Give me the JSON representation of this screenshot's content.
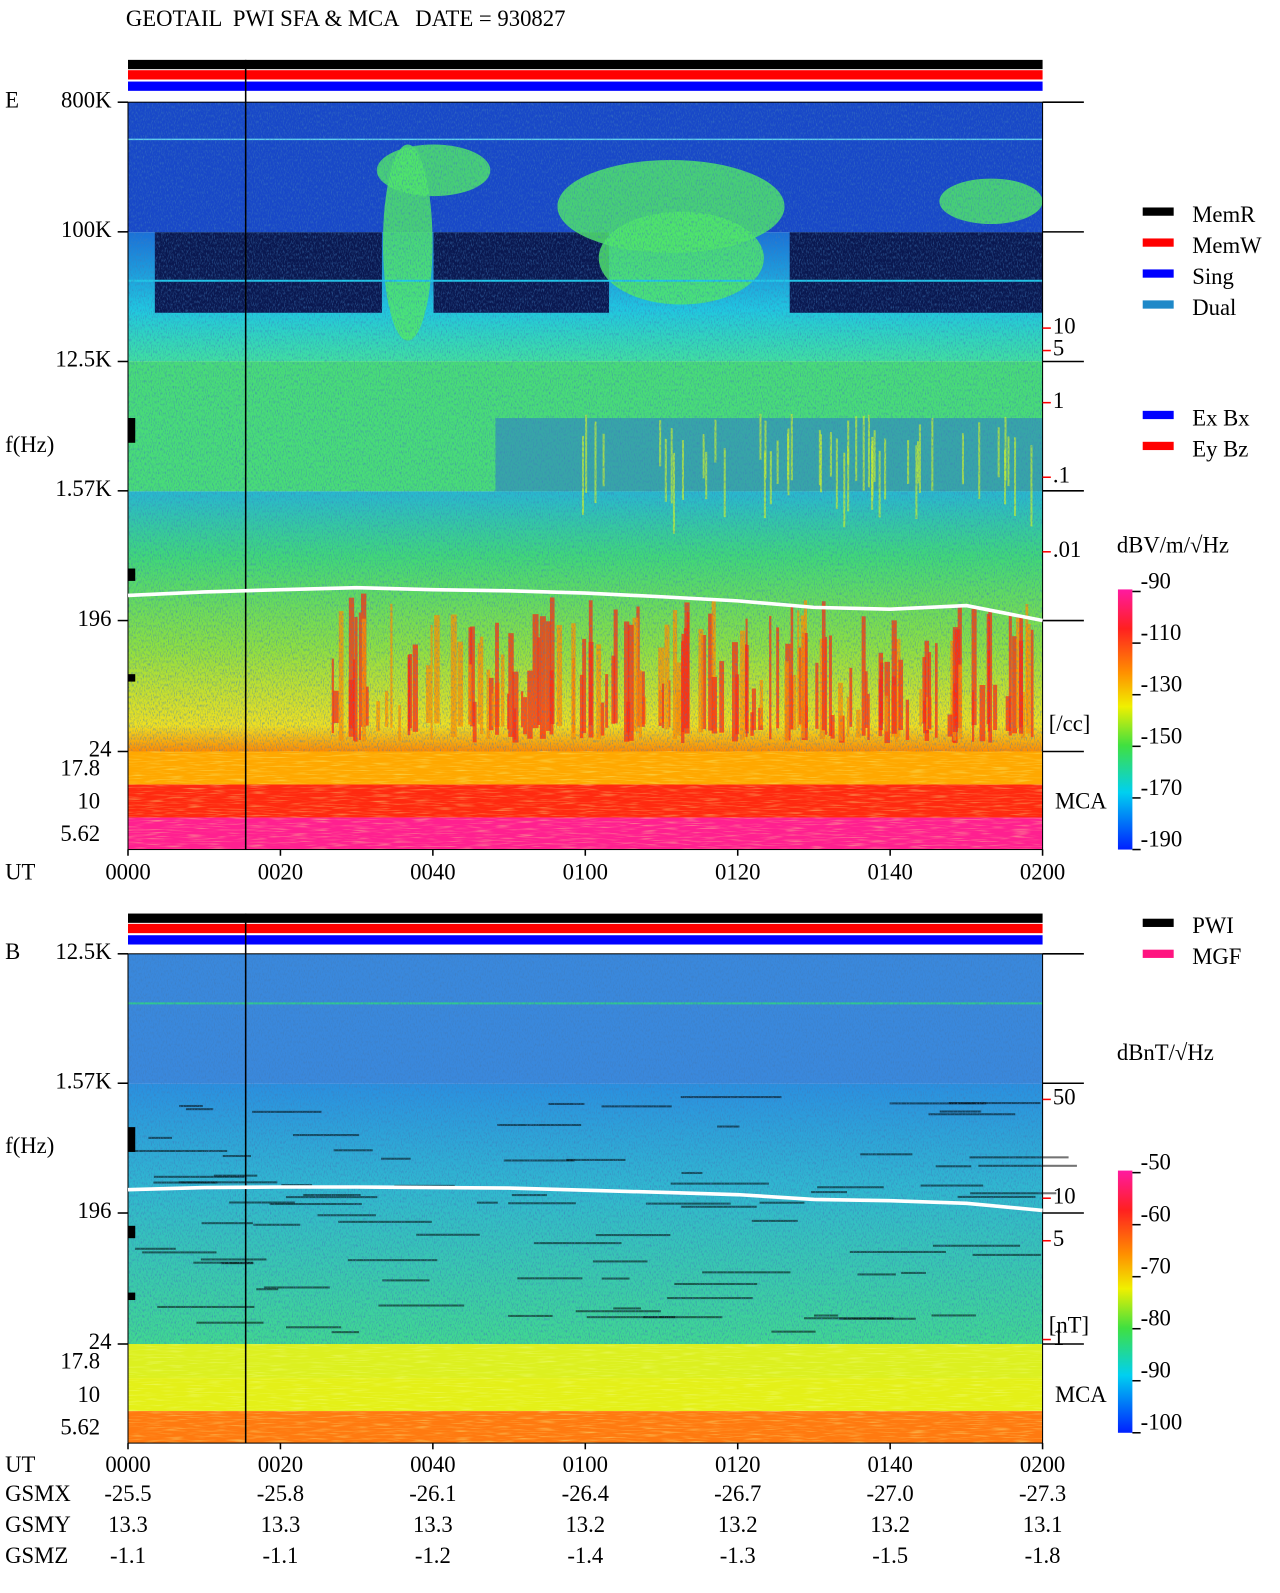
{
  "header": {
    "title": "GEOTAIL  PWI SFA & MCA   DATE = 930827"
  },
  "chart_data": [
    {
      "type": "spectrogram",
      "panel_label": "E",
      "y_label": "f(Hz)",
      "x_label": "UT",
      "xlim": [
        0,
        120
      ],
      "xticks": [
        {
          "value": 0,
          "label": "0000"
        },
        {
          "value": 20,
          "label": "0020"
        },
        {
          "value": 40,
          "label": "0040"
        },
        {
          "value": 60,
          "label": "0100"
        },
        {
          "value": 80,
          "label": "0120"
        },
        {
          "value": 100,
          "label": "0140"
        },
        {
          "value": 120,
          "label": "0200"
        }
      ],
      "yscale": "log",
      "ylim": [
        24,
        800000
      ],
      "yticks": [
        {
          "value": 800000,
          "label": "800K"
        },
        {
          "value": 100000,
          "label": "100K"
        },
        {
          "value": 12500,
          "label": "12.5K"
        },
        {
          "value": 1570,
          "label": "1.57K"
        },
        196,
        24
      ],
      "mca_label": "MCA",
      "mca_channels": [
        17.8,
        10,
        5.62
      ],
      "y2scale": "log",
      "y2lim": [
        2.1e-05,
        10700
      ],
      "y2ticks": [
        10,
        5,
        1,
        {
          "value": 0.1,
          "label": ".1"
        },
        {
          "value": 0.01,
          "label": ".01"
        }
      ],
      "y2_label": "[/cc]",
      "x": [
        0,
        10,
        20,
        30,
        40,
        50,
        60,
        70,
        80,
        90,
        100,
        110,
        120
      ],
      "series": [
        {
          "color": "#ffffff",
          "axis": "y2",
          "values": [
            0.0026,
            0.0029,
            0.0031,
            0.0033,
            0.0031,
            0.003,
            0.0028,
            0.0025,
            0.0022,
            0.0018,
            0.0017,
            0.0019,
            0.0012
          ]
        }
      ],
      "status_legend": [
        {
          "name": "MemR",
          "color": "#000000"
        },
        {
          "name": "MemW",
          "color": "#ff0000"
        },
        {
          "name": "Sing",
          "color": "#0000ff"
        },
        {
          "name": "Dual",
          "color": "#1e88c8"
        }
      ],
      "mode_legend": [
        {
          "name": "Ex Bx",
          "color": "#0000ff"
        },
        {
          "name": "Ey Bz",
          "color": "#ff0000"
        }
      ],
      "colorbar": {
        "label": "dBV/m/√Hz",
        "lim": [
          -190,
          -90
        ],
        "ticks": [
          -90,
          -110,
          -130,
          -150,
          -170,
          -190
        ]
      }
    },
    {
      "type": "spectrogram",
      "panel_label": "B",
      "y_label": "f(Hz)",
      "x_label": "UT",
      "xlim": [
        0,
        120
      ],
      "xticks": [
        {
          "value": 0,
          "label": "0000"
        },
        {
          "value": 20,
          "label": "0020"
        },
        {
          "value": 40,
          "label": "0040"
        },
        {
          "value": 60,
          "label": "0100"
        },
        {
          "value": 80,
          "label": "0120"
        },
        {
          "value": 100,
          "label": "0140"
        },
        {
          "value": 120,
          "label": "0200"
        }
      ],
      "yscale": "log",
      "ylim": [
        24,
        12500
      ],
      "yticks": [
        {
          "value": 12500,
          "label": "12.5K"
        },
        {
          "value": 1570,
          "label": "1.57K"
        },
        196,
        24
      ],
      "mca_label": "MCA",
      "mca_channels": [
        17.8,
        10,
        5.62
      ],
      "y2scale": "log",
      "y2lim": [
        0.93,
        536
      ],
      "y2ticks": [
        50,
        10,
        5,
        1
      ],
      "y2_label": "[nT]",
      "x": [
        0,
        10,
        20,
        30,
        40,
        50,
        60,
        70,
        80,
        90,
        100,
        110,
        120
      ],
      "series": [
        {
          "color": "#ffffff",
          "axis": "y2",
          "values": [
            11.5,
            11.9,
            12.0,
            12.0,
            11.9,
            11.8,
            11.4,
            11.0,
            10.6,
            9.8,
            9.6,
            9.2,
            8.2
          ]
        }
      ],
      "status_legend": [
        {
          "name": "PWI",
          "color": "#000000"
        },
        {
          "name": "MGF",
          "color": "#ff1480"
        }
      ],
      "colorbar": {
        "label": "dBnT/√Hz",
        "lim": [
          -100,
          -50
        ],
        "ticks": [
          -50,
          -60,
          -70,
          -80,
          -90,
          -100
        ]
      }
    }
  ],
  "orbit": {
    "rows": [
      {
        "label": "GSMX",
        "values": [
          "-25.5",
          "-25.8",
          "-26.1",
          "-26.4",
          "-26.7",
          "-27.0",
          "-27.3"
        ]
      },
      {
        "label": "GSMY",
        "values": [
          "13.3",
          "13.3",
          "13.3",
          "13.2",
          "13.2",
          "13.2",
          "13.1"
        ]
      },
      {
        "label": "GSMZ",
        "values": [
          "-1.1",
          "-1.1",
          "-1.2",
          "-1.4",
          "-1.3",
          "-1.5",
          "-1.8"
        ]
      }
    ]
  }
}
